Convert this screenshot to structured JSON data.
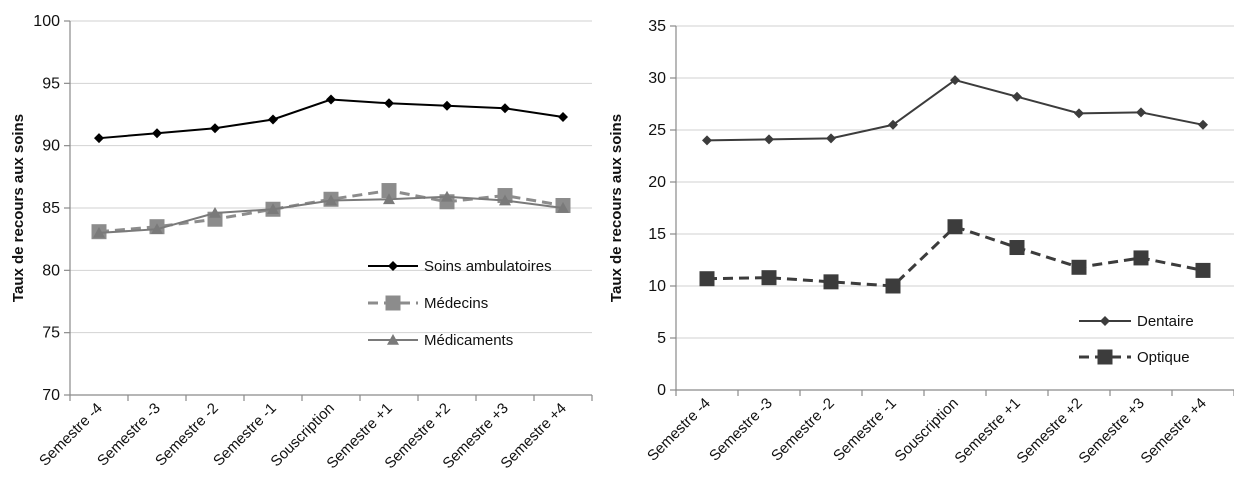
{
  "chart_data": [
    {
      "type": "line",
      "categories": [
        "Semestre -4",
        "Semestre -3",
        "Semestre -2",
        "Semestre -1",
        "Souscription",
        "Semestre +1",
        "Semestre +2",
        "Semestre +3",
        "Semestre +4"
      ],
      "series": [
        {
          "name": "Soins ambulatoires",
          "values": [
            90.6,
            91.0,
            91.4,
            92.1,
            93.7,
            93.4,
            93.2,
            93.0,
            92.3
          ],
          "color": "#000000",
          "marker": "diamond",
          "dash": "solid"
        },
        {
          "name": "Médecins",
          "values": [
            83.1,
            83.5,
            84.1,
            84.9,
            85.7,
            86.4,
            85.5,
            86.0,
            85.2
          ],
          "color": "#8c8c8c",
          "marker": "square",
          "dash": "dashed"
        },
        {
          "name": "Médicaments",
          "values": [
            83.0,
            83.3,
            84.6,
            84.9,
            85.6,
            85.7,
            85.9,
            85.6,
            85.0
          ],
          "color": "#7a7a7a",
          "marker": "triangle",
          "dash": "solid"
        }
      ],
      "ylabel": "Taux de recours aux soins",
      "xlabel": "",
      "ylim": [
        70,
        100
      ],
      "yticks": [
        70,
        75,
        80,
        85,
        90,
        95,
        100
      ],
      "grid": true,
      "legend_position": "bottom-right"
    },
    {
      "type": "line",
      "categories": [
        "Semestre -4",
        "Semestre -3",
        "Semestre -2",
        "Semestre -1",
        "Souscription",
        "Semestre +1",
        "Semestre +2",
        "Semestre +3",
        "Semestre +4"
      ],
      "series": [
        {
          "name": "Dentaire",
          "values": [
            24.0,
            24.1,
            24.2,
            25.5,
            29.8,
            28.2,
            26.6,
            26.7,
            25.5
          ],
          "color": "#3c3c3c",
          "marker": "diamond",
          "dash": "solid"
        },
        {
          "name": "Optique",
          "values": [
            10.7,
            10.8,
            10.4,
            10.0,
            15.7,
            13.7,
            11.8,
            12.7,
            11.5
          ],
          "color": "#3c3c3c",
          "marker": "square",
          "dash": "dashed"
        }
      ],
      "ylabel": "Taux de recours aux soins",
      "xlabel": "",
      "ylim": [
        0,
        35
      ],
      "yticks": [
        0,
        5,
        10,
        15,
        20,
        25,
        30,
        35
      ],
      "grid": true,
      "legend_position": "bottom-right"
    }
  ]
}
